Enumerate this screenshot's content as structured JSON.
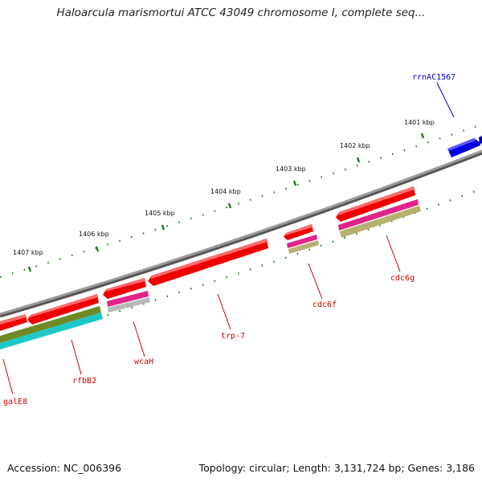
{
  "title": "Haloarcula marismortui ATCC 43049 chromosome I, complete seq...",
  "footer": {
    "accession": "Accession: NC_006396",
    "summary": "Topology: circular; Length: 3,131,724 bp; Genes: 3,186"
  },
  "tick_labels": [
    "1401 kbp",
    "1402 kbp",
    "1403 kbp",
    "1404 kbp",
    "1405 kbp",
    "1406 kbp",
    "1407 kbp"
  ],
  "gene_labels": [
    {
      "name": "rrnAC1567",
      "color": "#0000cc"
    },
    {
      "name": "cdc6g",
      "color": "#cc0000"
    },
    {
      "name": "cdc6f",
      "color": "#cc0000"
    },
    {
      "name": "trp-7",
      "color": "#cc0000"
    },
    {
      "name": "wcaH",
      "color": "#cc0000"
    },
    {
      "name": "rfbB2",
      "color": "#cc0000"
    },
    {
      "name": "galE8",
      "color": "#cc0000"
    }
  ],
  "colors": {
    "backbone": "#7a7a7a",
    "tick": "#1e7a1e",
    "gene_red": "#ee0000",
    "gene_blue": "#0000dd",
    "magenta": "#e0248a",
    "khaki": "#b8b070",
    "olive": "#6e8a24",
    "cyan": "#1ec8c8",
    "grey": "#b8b8b8"
  }
}
